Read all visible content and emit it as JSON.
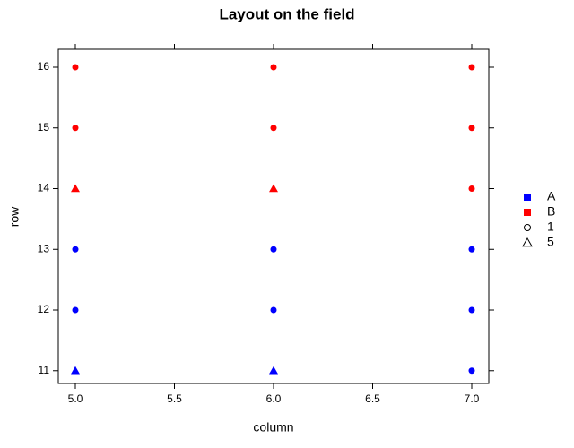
{
  "chart_data": {
    "type": "scatter",
    "title": "Layout on the field",
    "x_label": "column",
    "y_label": "row",
    "xlim": [
      4.914,
      7.086
    ],
    "ylim": [
      10.79,
      16.295
    ],
    "xticks": [
      {
        "value": 5,
        "label": "5.0"
      },
      {
        "value": 5.5,
        "label": "5.5"
      },
      {
        "value": 6,
        "label": "6.0"
      },
      {
        "value": 6.5,
        "label": "6.5"
      },
      {
        "value": 7,
        "label": "7.0"
      }
    ],
    "yticks": [
      11,
      12,
      13,
      14,
      15,
      16
    ],
    "series": [
      {
        "name": "A",
        "color": "#0000ff",
        "x": [
          5,
          6,
          7,
          5,
          6,
          7,
          5,
          6,
          7
        ],
        "values": [
          11,
          11,
          11,
          12,
          12,
          12,
          13,
          13,
          13
        ],
        "shapes": [
          "triangle",
          "triangle",
          "circle",
          "circle",
          "circle",
          "circle",
          "circle",
          "circle",
          "circle"
        ]
      },
      {
        "name": "B",
        "color": "#ff0000",
        "x": [
          5,
          6,
          7,
          5,
          6,
          7,
          5,
          6,
          7
        ],
        "values": [
          14,
          14,
          14,
          15,
          15,
          15,
          16,
          16,
          16
        ],
        "shapes": [
          "triangle",
          "triangle",
          "circle",
          "circle",
          "circle",
          "circle",
          "circle",
          "circle",
          "circle"
        ]
      }
    ],
    "shape_legend": [
      {
        "name": "1",
        "marker": "circle"
      },
      {
        "name": "5",
        "marker": "triangle"
      }
    ]
  }
}
